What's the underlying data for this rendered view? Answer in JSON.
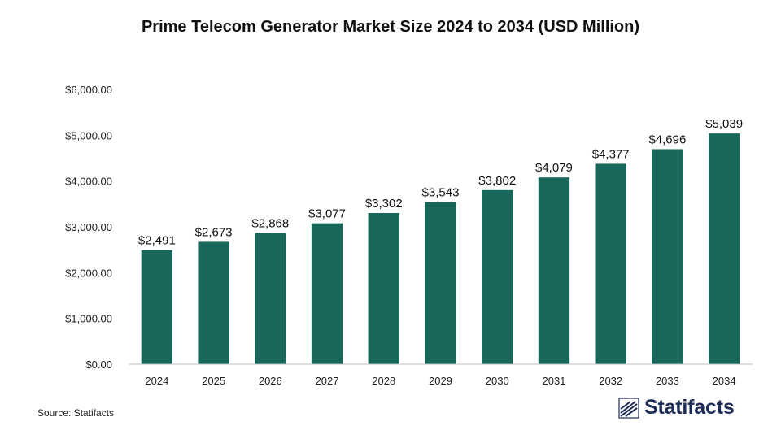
{
  "chart_data": {
    "type": "bar",
    "title": "Prime Telecom Generator Market Size 2024 to 2034 (USD Million)",
    "categories": [
      "2024",
      "2025",
      "2026",
      "2027",
      "2028",
      "2029",
      "2030",
      "2031",
      "2032",
      "2033",
      "2034"
    ],
    "values": [
      2491,
      2673,
      2868,
      3077,
      3302,
      3543,
      3802,
      4079,
      4377,
      4696,
      5039
    ],
    "value_labels": [
      "$2,491",
      "$2,673",
      "$2,868",
      "$3,077",
      "$3,302",
      "$3,543",
      "$3,802",
      "$4,079",
      "$4,377",
      "$4,696",
      "$5,039"
    ],
    "ylim": [
      0,
      6000
    ],
    "yticks": [
      0,
      1000,
      2000,
      3000,
      4000,
      5000,
      6000
    ],
    "ytick_labels": [
      "$0.00",
      "$1,000.00",
      "$2,000.00",
      "$3,000.00",
      "$4,000.00",
      "$5,000.00",
      "$6,000.00"
    ],
    "xlabel": "",
    "ylabel": "",
    "grid": false,
    "legend": "none",
    "bar_color": "#19665a"
  },
  "source": "Source: Statifacts",
  "logo": {
    "text": "Statifacts",
    "icon": "statifacts-logo-icon",
    "color": "#1d2b57"
  }
}
